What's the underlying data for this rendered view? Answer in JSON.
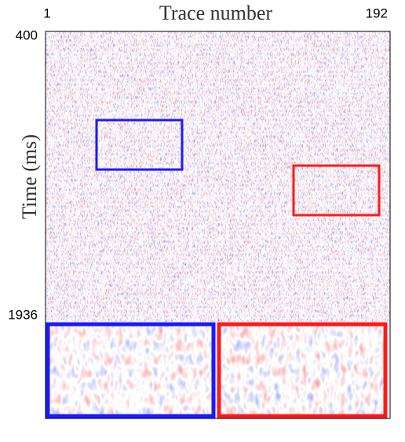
{
  "chart_data": {
    "type": "image",
    "x_label": "Trace number",
    "y_label": "Time (ms)",
    "xlim": [
      1,
      192
    ],
    "ylim": [
      400,
      1936
    ],
    "xticks": [
      1,
      192
    ],
    "yticks": [
      400,
      1936
    ],
    "y_inverted": true
  }
}
